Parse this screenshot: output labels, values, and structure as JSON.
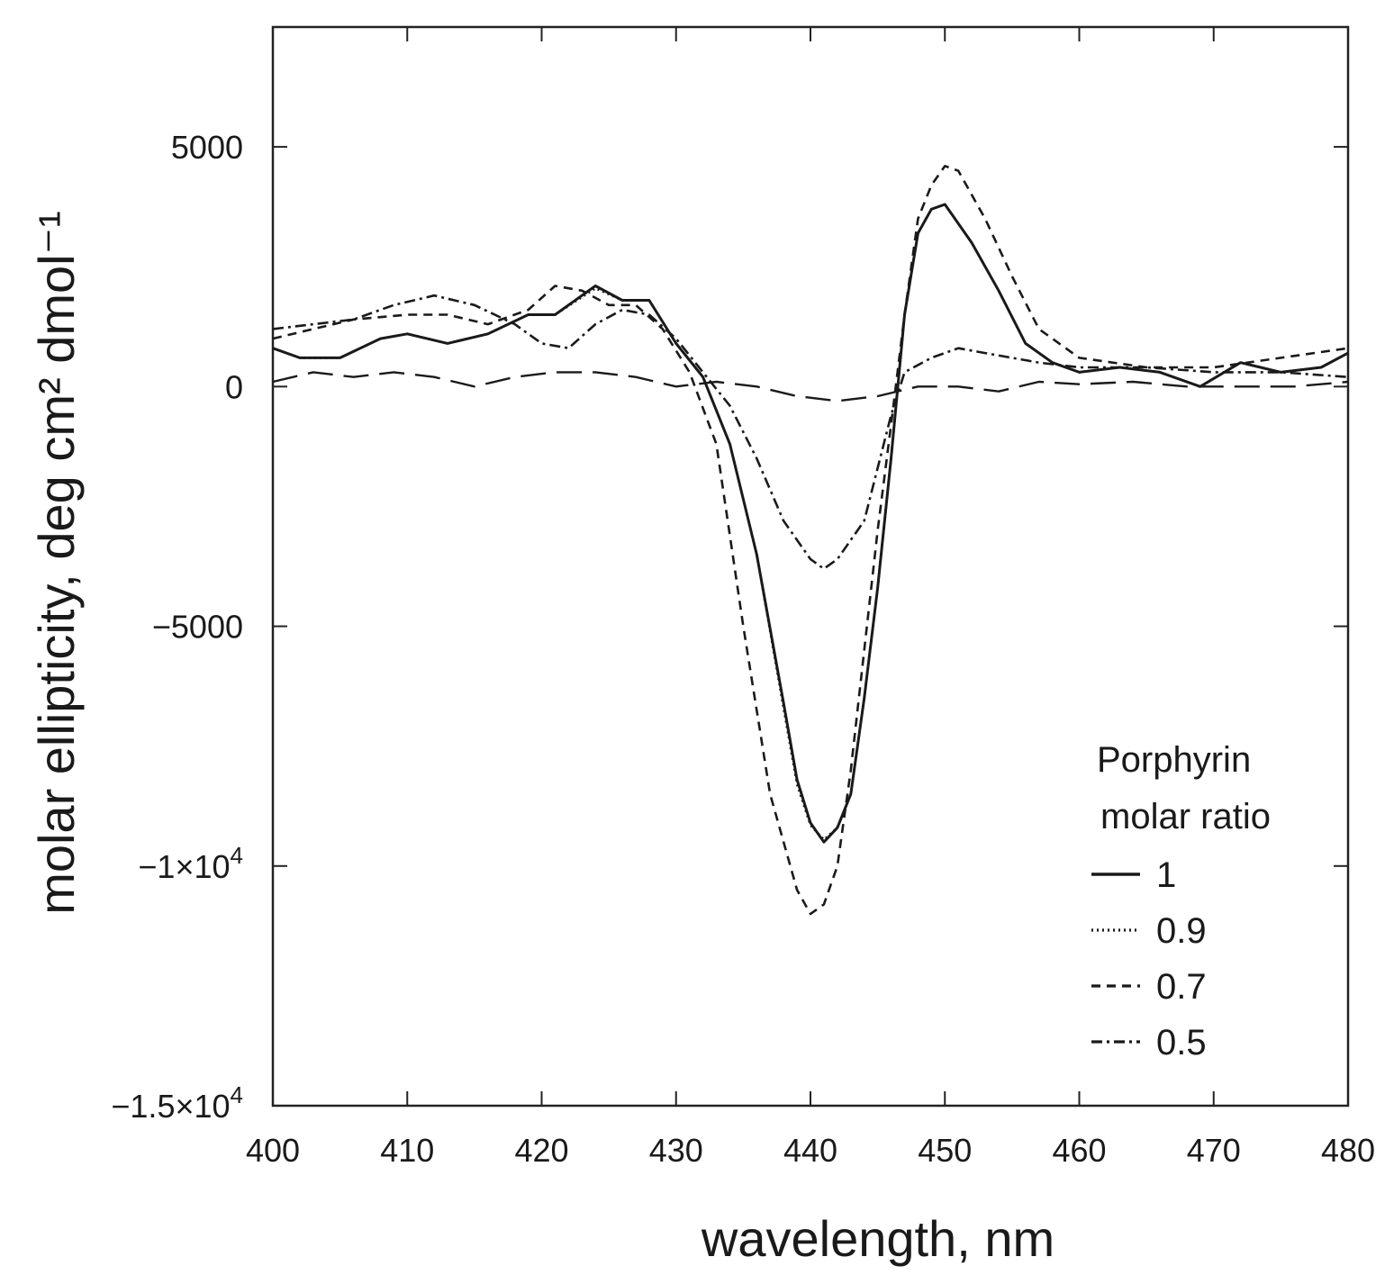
{
  "chart_data": {
    "type": "line",
    "xlabel": "wavelength, nm",
    "ylabel": "molar ellipticity, deg cm² dmol⁻¹",
    "xlim": [
      400,
      480
    ],
    "ylim": [
      -15000,
      7500
    ],
    "x_ticks": [
      400,
      410,
      420,
      430,
      440,
      450,
      460,
      470,
      480
    ],
    "x_tick_labels": [
      "400",
      "410",
      "420",
      "430",
      "440",
      "450",
      "460",
      "470",
      "480"
    ],
    "y_ticks": [
      5000,
      0,
      -5000,
      -10000,
      -15000
    ],
    "y_tick_labels": [
      {
        "base": "5000",
        "exp": ""
      },
      {
        "base": "0",
        "exp": ""
      },
      {
        "base": "−5000",
        "exp": ""
      },
      {
        "base": "−1×10",
        "exp": "4"
      },
      {
        "base": "−1.5×10",
        "exp": "4"
      }
    ],
    "legend": {
      "title_line1": "Porphyrin",
      "title_line2": "molar ratio",
      "position": "bottom-right"
    },
    "series": [
      {
        "name": "1",
        "style": "solid",
        "x": [
          400,
          402,
          405,
          408,
          410,
          413,
          416,
          419,
          421,
          424,
          426,
          428,
          430,
          432,
          434,
          436,
          438,
          439,
          440,
          441,
          442,
          443,
          444,
          445,
          446,
          447,
          448,
          449,
          450,
          452,
          454,
          456,
          458,
          460,
          463,
          466,
          469,
          472,
          475,
          478,
          480
        ],
        "y": [
          800,
          600,
          600,
          1000,
          1100,
          900,
          1100,
          1500,
          1500,
          2100,
          1800,
          1800,
          900,
          200,
          -1200,
          -3500,
          -6600,
          -8200,
          -9100,
          -9500,
          -9200,
          -8500,
          -6500,
          -4200,
          -1500,
          1500,
          3200,
          3700,
          3800,
          3000,
          2000,
          900,
          500,
          300,
          400,
          300,
          0,
          500,
          300,
          400,
          700
        ]
      },
      {
        "name": "0.9",
        "style": "dotted",
        "x": [
          400,
          402,
          405,
          408,
          410,
          413,
          416,
          419,
          421,
          424,
          426,
          428,
          430,
          432,
          434,
          436,
          438,
          439,
          440,
          441,
          442,
          443,
          444,
          445,
          446,
          447,
          448,
          449,
          450,
          452,
          454,
          456,
          458,
          460,
          463,
          466,
          469,
          472,
          475,
          478,
          480
        ],
        "y": [
          800,
          600,
          600,
          1000,
          1100,
          900,
          1100,
          1500,
          1500,
          2050,
          1800,
          1800,
          900,
          200,
          -1200,
          -3500,
          -6700,
          -8300,
          -9150,
          -9450,
          -9200,
          -8500,
          -6500,
          -4200,
          -1500,
          1500,
          3200,
          3700,
          3800,
          3000,
          2000,
          900,
          500,
          300,
          400,
          300,
          0,
          500,
          300,
          400,
          700
        ]
      },
      {
        "name": "0.7",
        "style": "dashed",
        "x": [
          400,
          403,
          406,
          410,
          413,
          416,
          419,
          421,
          423,
          425,
          427,
          429,
          431,
          433,
          435,
          437,
          439,
          440,
          441,
          442,
          443,
          444,
          445,
          446,
          447,
          448,
          449,
          450,
          451,
          453,
          455,
          457,
          460,
          465,
          470,
          475,
          480
        ],
        "y": [
          1000,
          1200,
          1400,
          1500,
          1500,
          1300,
          1600,
          2100,
          2000,
          1700,
          1700,
          1200,
          300,
          -1200,
          -5000,
          -8500,
          -10500,
          -11000,
          -10800,
          -10000,
          -8000,
          -5500,
          -3000,
          -800,
          1500,
          3500,
          4200,
          4600,
          4500,
          3500,
          2300,
          1200,
          600,
          400,
          400,
          600,
          800
        ]
      },
      {
        "name": "0.5",
        "style": "dashdot",
        "x": [
          400,
          403,
          406,
          409,
          412,
          415,
          418,
          420,
          422,
          424,
          426,
          428,
          430,
          432,
          434,
          436,
          438,
          440,
          441,
          442,
          444,
          445,
          446,
          447,
          449,
          451,
          453,
          455,
          457,
          460,
          465,
          470,
          475,
          480
        ],
        "y": [
          1200,
          1300,
          1400,
          1700,
          1900,
          1700,
          1300,
          900,
          800,
          1300,
          1600,
          1500,
          1000,
          300,
          -400,
          -1500,
          -2800,
          -3600,
          -3800,
          -3600,
          -2800,
          -1700,
          -600,
          300,
          600,
          800,
          700,
          600,
          500,
          400,
          400,
          300,
          300,
          200
        ]
      },
      {
        "name": "",
        "style": "longdash",
        "x": [
          400,
          403,
          406,
          409,
          412,
          415,
          418,
          421,
          424,
          427,
          430,
          433,
          436,
          439,
          442,
          445,
          448,
          451,
          454,
          457,
          460,
          464,
          468,
          472,
          476,
          480
        ],
        "y": [
          100,
          300,
          200,
          300,
          200,
          0,
          200,
          300,
          300,
          200,
          0,
          100,
          0,
          -200,
          -300,
          -200,
          0,
          0,
          -100,
          100,
          50,
          100,
          0,
          0,
          0,
          100
        ]
      }
    ]
  }
}
